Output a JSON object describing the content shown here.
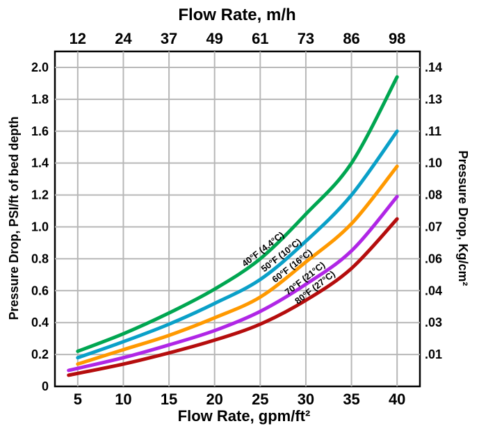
{
  "chart_data": {
    "type": "line",
    "title": "Flow Rate, m/h",
    "xlabel": "Flow Rate, gpm/ft²",
    "ylabel": "Pressure Drop, PSI/ft of bed depth",
    "y2label": "Pressure Drop, Kg/cm²",
    "xlim": [
      2.5,
      42.5
    ],
    "ylim": [
      0,
      2.1
    ],
    "grid": true,
    "legend": "none",
    "x_ticks": [
      "5",
      "10",
      "15",
      "20",
      "25",
      "30",
      "35",
      "40"
    ],
    "y_ticks": [
      "0",
      "0.2",
      "0.4",
      "0.6",
      "0.8",
      "1.0",
      "1.2",
      "1.4",
      "1.6",
      "1.8",
      "2.0"
    ],
    "top_ticks": [
      "12",
      "24",
      "37",
      "49",
      "61",
      "73",
      "86",
      "98"
    ],
    "right_ticks": [
      ".01",
      ".03",
      ".04",
      ".06",
      ".07",
      ".08",
      ".10",
      ".11",
      ".13",
      ".14"
    ],
    "series": [
      {
        "name": "40°F (4.4°C)",
        "color": "#00a651",
        "x": [
          5,
          10,
          15,
          20,
          25,
          30,
          35,
          40
        ],
        "y": [
          0.22,
          0.33,
          0.46,
          0.61,
          0.8,
          1.08,
          1.4,
          1.94
        ]
      },
      {
        "name": "50°F (10°C)",
        "color": "#0aa0c8",
        "x": [
          5,
          10,
          15,
          20,
          25,
          30,
          35,
          40
        ],
        "y": [
          0.18,
          0.28,
          0.39,
          0.52,
          0.67,
          0.91,
          1.2,
          1.6
        ]
      },
      {
        "name": "60°F (16°C)",
        "color": "#ff9900",
        "x": [
          5,
          10,
          15,
          20,
          25,
          30,
          35,
          40
        ],
        "y": [
          0.14,
          0.23,
          0.32,
          0.43,
          0.56,
          0.78,
          1.02,
          1.38
        ]
      },
      {
        "name": "70°F (21°C)",
        "color": "#b026e6",
        "x": [
          4,
          10,
          15,
          20,
          25,
          30,
          35,
          40
        ],
        "y": [
          0.1,
          0.18,
          0.26,
          0.35,
          0.47,
          0.64,
          0.85,
          1.19
        ]
      },
      {
        "name": "80°F (27°C)",
        "color": "#b50d0d",
        "x": [
          4,
          10,
          15,
          20,
          25,
          30,
          35,
          40
        ],
        "y": [
          0.07,
          0.14,
          0.21,
          0.29,
          0.39,
          0.54,
          0.74,
          1.05
        ]
      }
    ]
  }
}
